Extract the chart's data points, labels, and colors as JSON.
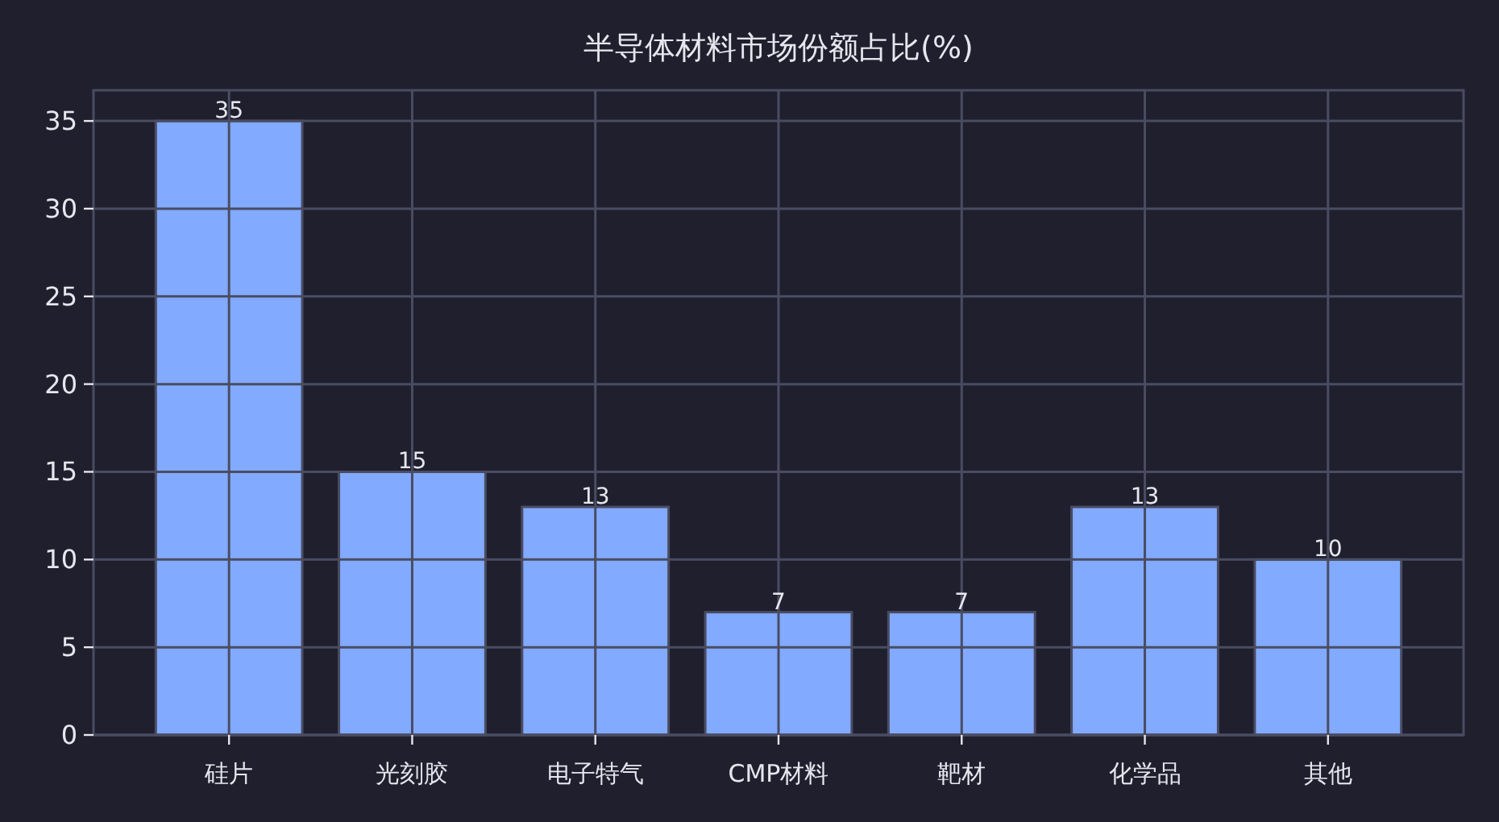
{
  "chart_data": {
    "type": "bar",
    "title": "半导体材料市场份额占比(%)",
    "categories": [
      "硅片",
      "光刻胶",
      "电子特气",
      "CMP材料",
      "靶材",
      "化学品",
      "其他"
    ],
    "values": [
      35,
      15,
      13,
      7,
      7,
      13,
      10
    ],
    "color": "#82aaff",
    "ylim": [
      0,
      36.75
    ],
    "yticks": [
      0,
      5,
      10,
      15,
      20,
      25,
      30,
      35
    ],
    "grid": true,
    "data_labels": true
  }
}
